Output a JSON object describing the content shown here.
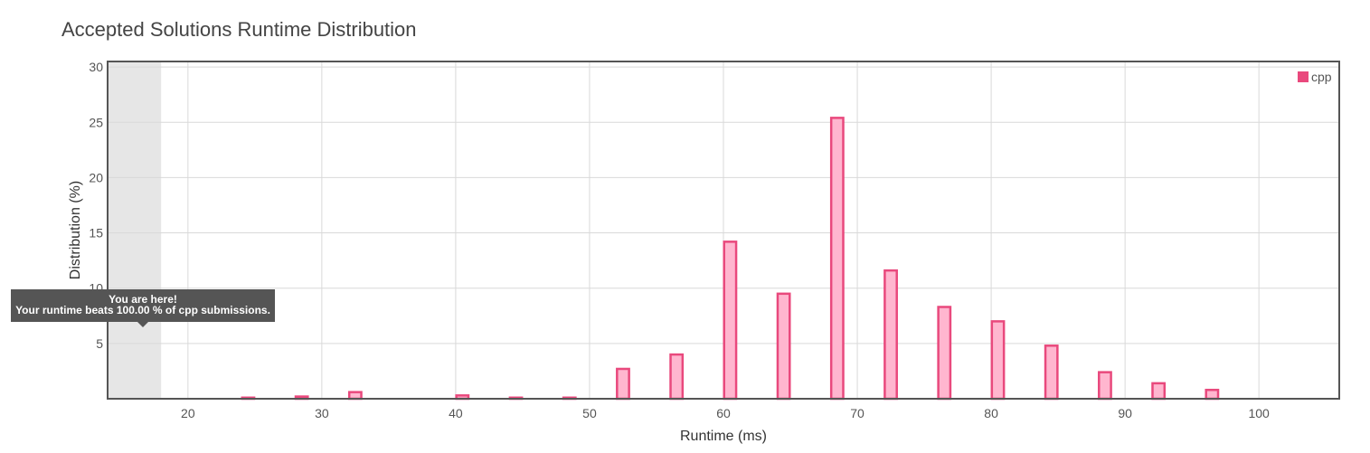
{
  "title": "Accepted Solutions Runtime Distribution",
  "tooltip": {
    "line1": "You are here!",
    "line2": "Your runtime beats 100.00 % of cpp submissions."
  },
  "colors": {
    "bar_fill": "#ffb6cf",
    "bar_stroke": "#e9497d",
    "highlight_band": "#e6e6e6",
    "grid": "#d9d9d9",
    "frame": "#555555",
    "legend_swatch": "#e9497d"
  },
  "chart_data": {
    "type": "bar",
    "title": "Accepted Solutions Runtime Distribution",
    "xlabel": "Runtime (ms)",
    "ylabel": "Distribution (%)",
    "xlim": [
      14,
      106
    ],
    "ylim": [
      0,
      30.5
    ],
    "xticks": [
      20,
      30,
      40,
      50,
      60,
      70,
      80,
      90,
      100
    ],
    "yticks": [
      5,
      10,
      15,
      20,
      25,
      30
    ],
    "grid": true,
    "legend_position": "top-right",
    "highlight_range": [
      14,
      18
    ],
    "series": [
      {
        "name": "cpp",
        "x": [
          24.5,
          28.5,
          32.5,
          40.5,
          44.5,
          48.5,
          52.5,
          56.5,
          60.5,
          64.5,
          68.5,
          72.5,
          76.5,
          80.5,
          84.5,
          88.5,
          92.5,
          96.5
        ],
        "values": [
          0.1,
          0.2,
          0.6,
          0.3,
          0.1,
          0.1,
          2.7,
          4.0,
          14.2,
          9.5,
          25.4,
          11.6,
          8.3,
          7.0,
          4.8,
          2.4,
          1.4,
          0.8
        ]
      }
    ]
  }
}
